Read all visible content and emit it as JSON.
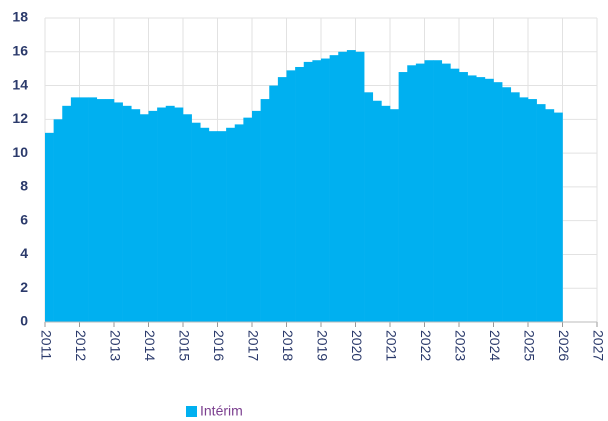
{
  "chart_data": {
    "type": "bar",
    "x": [
      2011,
      2011.25,
      2011.5,
      2011.75,
      2012,
      2012.25,
      2012.5,
      2012.75,
      2013,
      2013.25,
      2013.5,
      2013.75,
      2014,
      2014.25,
      2014.5,
      2014.75,
      2015,
      2015.25,
      2015.5,
      2015.75,
      2016,
      2016.25,
      2016.5,
      2016.75,
      2017,
      2017.25,
      2017.5,
      2017.75,
      2018,
      2018.25,
      2018.5,
      2018.75,
      2019,
      2019.25,
      2019.5,
      2019.75,
      2020,
      2020.25,
      2020.5,
      2020.75,
      2021,
      2021.25,
      2021.5,
      2021.75,
      2022,
      2022.25,
      2022.5,
      2022.75,
      2023,
      2023.25,
      2023.5,
      2023.75,
      2024,
      2024.25,
      2024.5,
      2024.75,
      2025,
      2025.25,
      2025.5,
      2025.75
    ],
    "series": [
      {
        "name": "Intérim",
        "color": "#00b0f0",
        "values": [
          11.2,
          12.0,
          12.8,
          13.3,
          13.3,
          13.3,
          13.2,
          13.2,
          13.0,
          12.8,
          12.6,
          12.3,
          12.5,
          12.7,
          12.8,
          12.7,
          12.3,
          11.8,
          11.5,
          11.3,
          11.3,
          11.5,
          11.7,
          12.1,
          12.5,
          13.2,
          14.0,
          14.5,
          14.9,
          15.1,
          15.4,
          15.5,
          15.6,
          15.8,
          16.0,
          16.1,
          16.0,
          13.6,
          13.1,
          12.8,
          12.6,
          14.8,
          15.2,
          15.3,
          15.5,
          15.5,
          15.3,
          15.0,
          14.8,
          14.6,
          14.5,
          14.4,
          14.2,
          13.9,
          13.6,
          13.3,
          13.2,
          12.9,
          12.6,
          12.4
        ]
      }
    ],
    "xlim": [
      2011,
      2027
    ],
    "xticks": [
      2011,
      2012,
      2013,
      2014,
      2015,
      2016,
      2017,
      2018,
      2019,
      2020,
      2021,
      2022,
      2023,
      2024,
      2025,
      2026,
      2027
    ],
    "ylim": [
      0,
      18
    ],
    "yticks": [
      0,
      2,
      4,
      6,
      8,
      10,
      12,
      14,
      16,
      18
    ],
    "grid": true,
    "legend": "bottom"
  }
}
